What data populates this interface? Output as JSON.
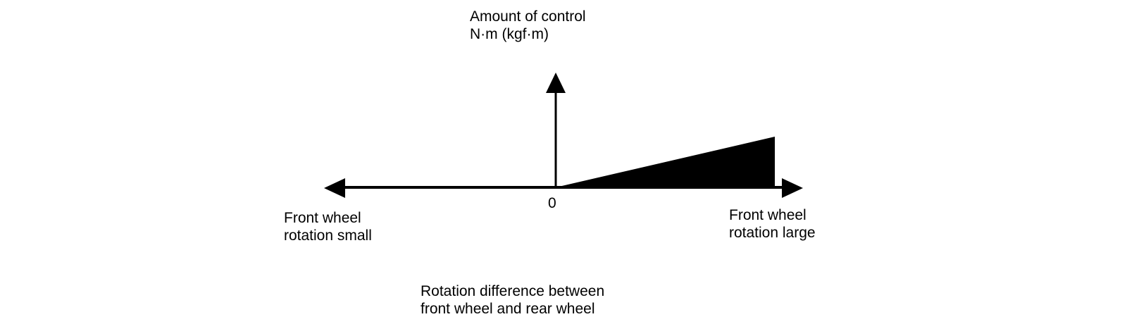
{
  "diagram": {
    "y_axis": {
      "label_line1": "Amount of control",
      "label_line2": "N·m (kgf·m)"
    },
    "origin_label": "0",
    "left_end": {
      "label_line1": "Front wheel",
      "label_line2": "rotation small"
    },
    "right_end": {
      "label_line1": "Front wheel",
      "label_line2": "rotation large"
    },
    "x_axis": {
      "label_line1": "Rotation difference between",
      "label_line2": "front wheel and rear wheel"
    },
    "colors": {
      "line": "#000000",
      "fill": "#000000",
      "background": "#ffffff"
    }
  }
}
